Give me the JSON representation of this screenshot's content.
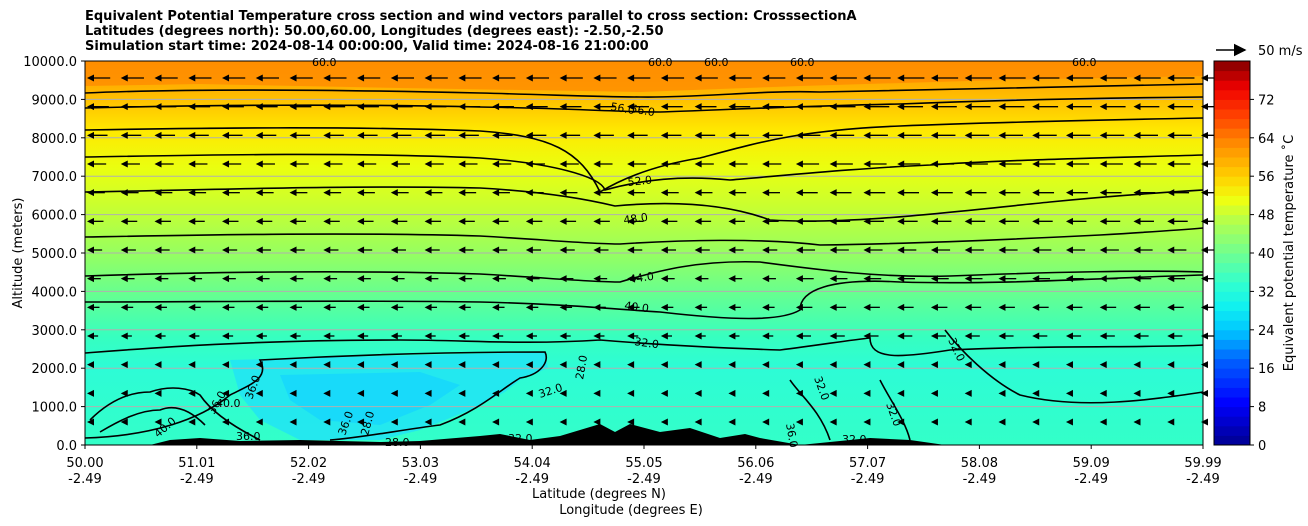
{
  "title": {
    "line1": "Equivalent Potential Temperature cross section and wind vectors parallel to cross section: CrosssectionA",
    "line2": "Latitudes (degrees north): 50.00,60.00, Longitudes (degrees east): -2.50,-2.50",
    "line3": "Simulation start time: 2024-08-14 00:00:00, Valid time: 2024-08-16 21:00:00"
  },
  "chart_data": {
    "type": "heatmap",
    "subtype": "cross-section filled contour with wind vectors",
    "ylabel": "Altitude (meters)",
    "xlabel": "Latitude (degrees N)",
    "xlabel2": "Longitude (degrees E)",
    "ylim": [
      0,
      10000
    ],
    "y_ticks": [
      "0.0",
      "1000.0",
      "2000.0",
      "3000.0",
      "4000.0",
      "5000.0",
      "6000.0",
      "7000.0",
      "8000.0",
      "9000.0",
      "10000.0"
    ],
    "x_ticks": [
      {
        "lat": "50.00",
        "lon": "-2.49"
      },
      {
        "lat": "51.01",
        "lon": "-2.49"
      },
      {
        "lat": "52.02",
        "lon": "-2.49"
      },
      {
        "lat": "53.03",
        "lon": "-2.49"
      },
      {
        "lat": "54.04",
        "lon": "-2.49"
      },
      {
        "lat": "55.05",
        "lon": "-2.49"
      },
      {
        "lat": "56.06",
        "lon": "-2.49"
      },
      {
        "lat": "57.07",
        "lon": "-2.49"
      },
      {
        "lat": "58.08",
        "lon": "-2.49"
      },
      {
        "lat": "59.09",
        "lon": "-2.49"
      },
      {
        "lat": "59.99",
        "lon": "-2.49"
      }
    ],
    "grid": "horizontal",
    "colorbar": {
      "label": "Equivalent potential temperature ˚C",
      "range": [
        0,
        80
      ],
      "ticks": [
        "0",
        "8",
        "16",
        "24",
        "32",
        "40",
        "48",
        "56",
        "64",
        "72"
      ]
    },
    "quiver_key": "50 m/s",
    "contour_labels": [
      "60.0",
      "56.0",
      "52.0",
      "48.0",
      "44.0",
      "40.0",
      "36.0",
      "32.0",
      "28.0"
    ],
    "theta_e_profile": [
      {
        "altitude": 0,
        "value": 32
      },
      {
        "altitude": 1000,
        "value": 30
      },
      {
        "altitude": 2000,
        "value": 31
      },
      {
        "altitude": 3000,
        "value": 36
      },
      {
        "altitude": 4000,
        "value": 41
      },
      {
        "altitude": 5000,
        "value": 44
      },
      {
        "altitude": 6000,
        "value": 47
      },
      {
        "altitude": 7000,
        "value": 50
      },
      {
        "altitude": 8000,
        "value": 53
      },
      {
        "altitude": 9000,
        "value": 57
      },
      {
        "altitude": 10000,
        "value": 61
      }
    ]
  }
}
